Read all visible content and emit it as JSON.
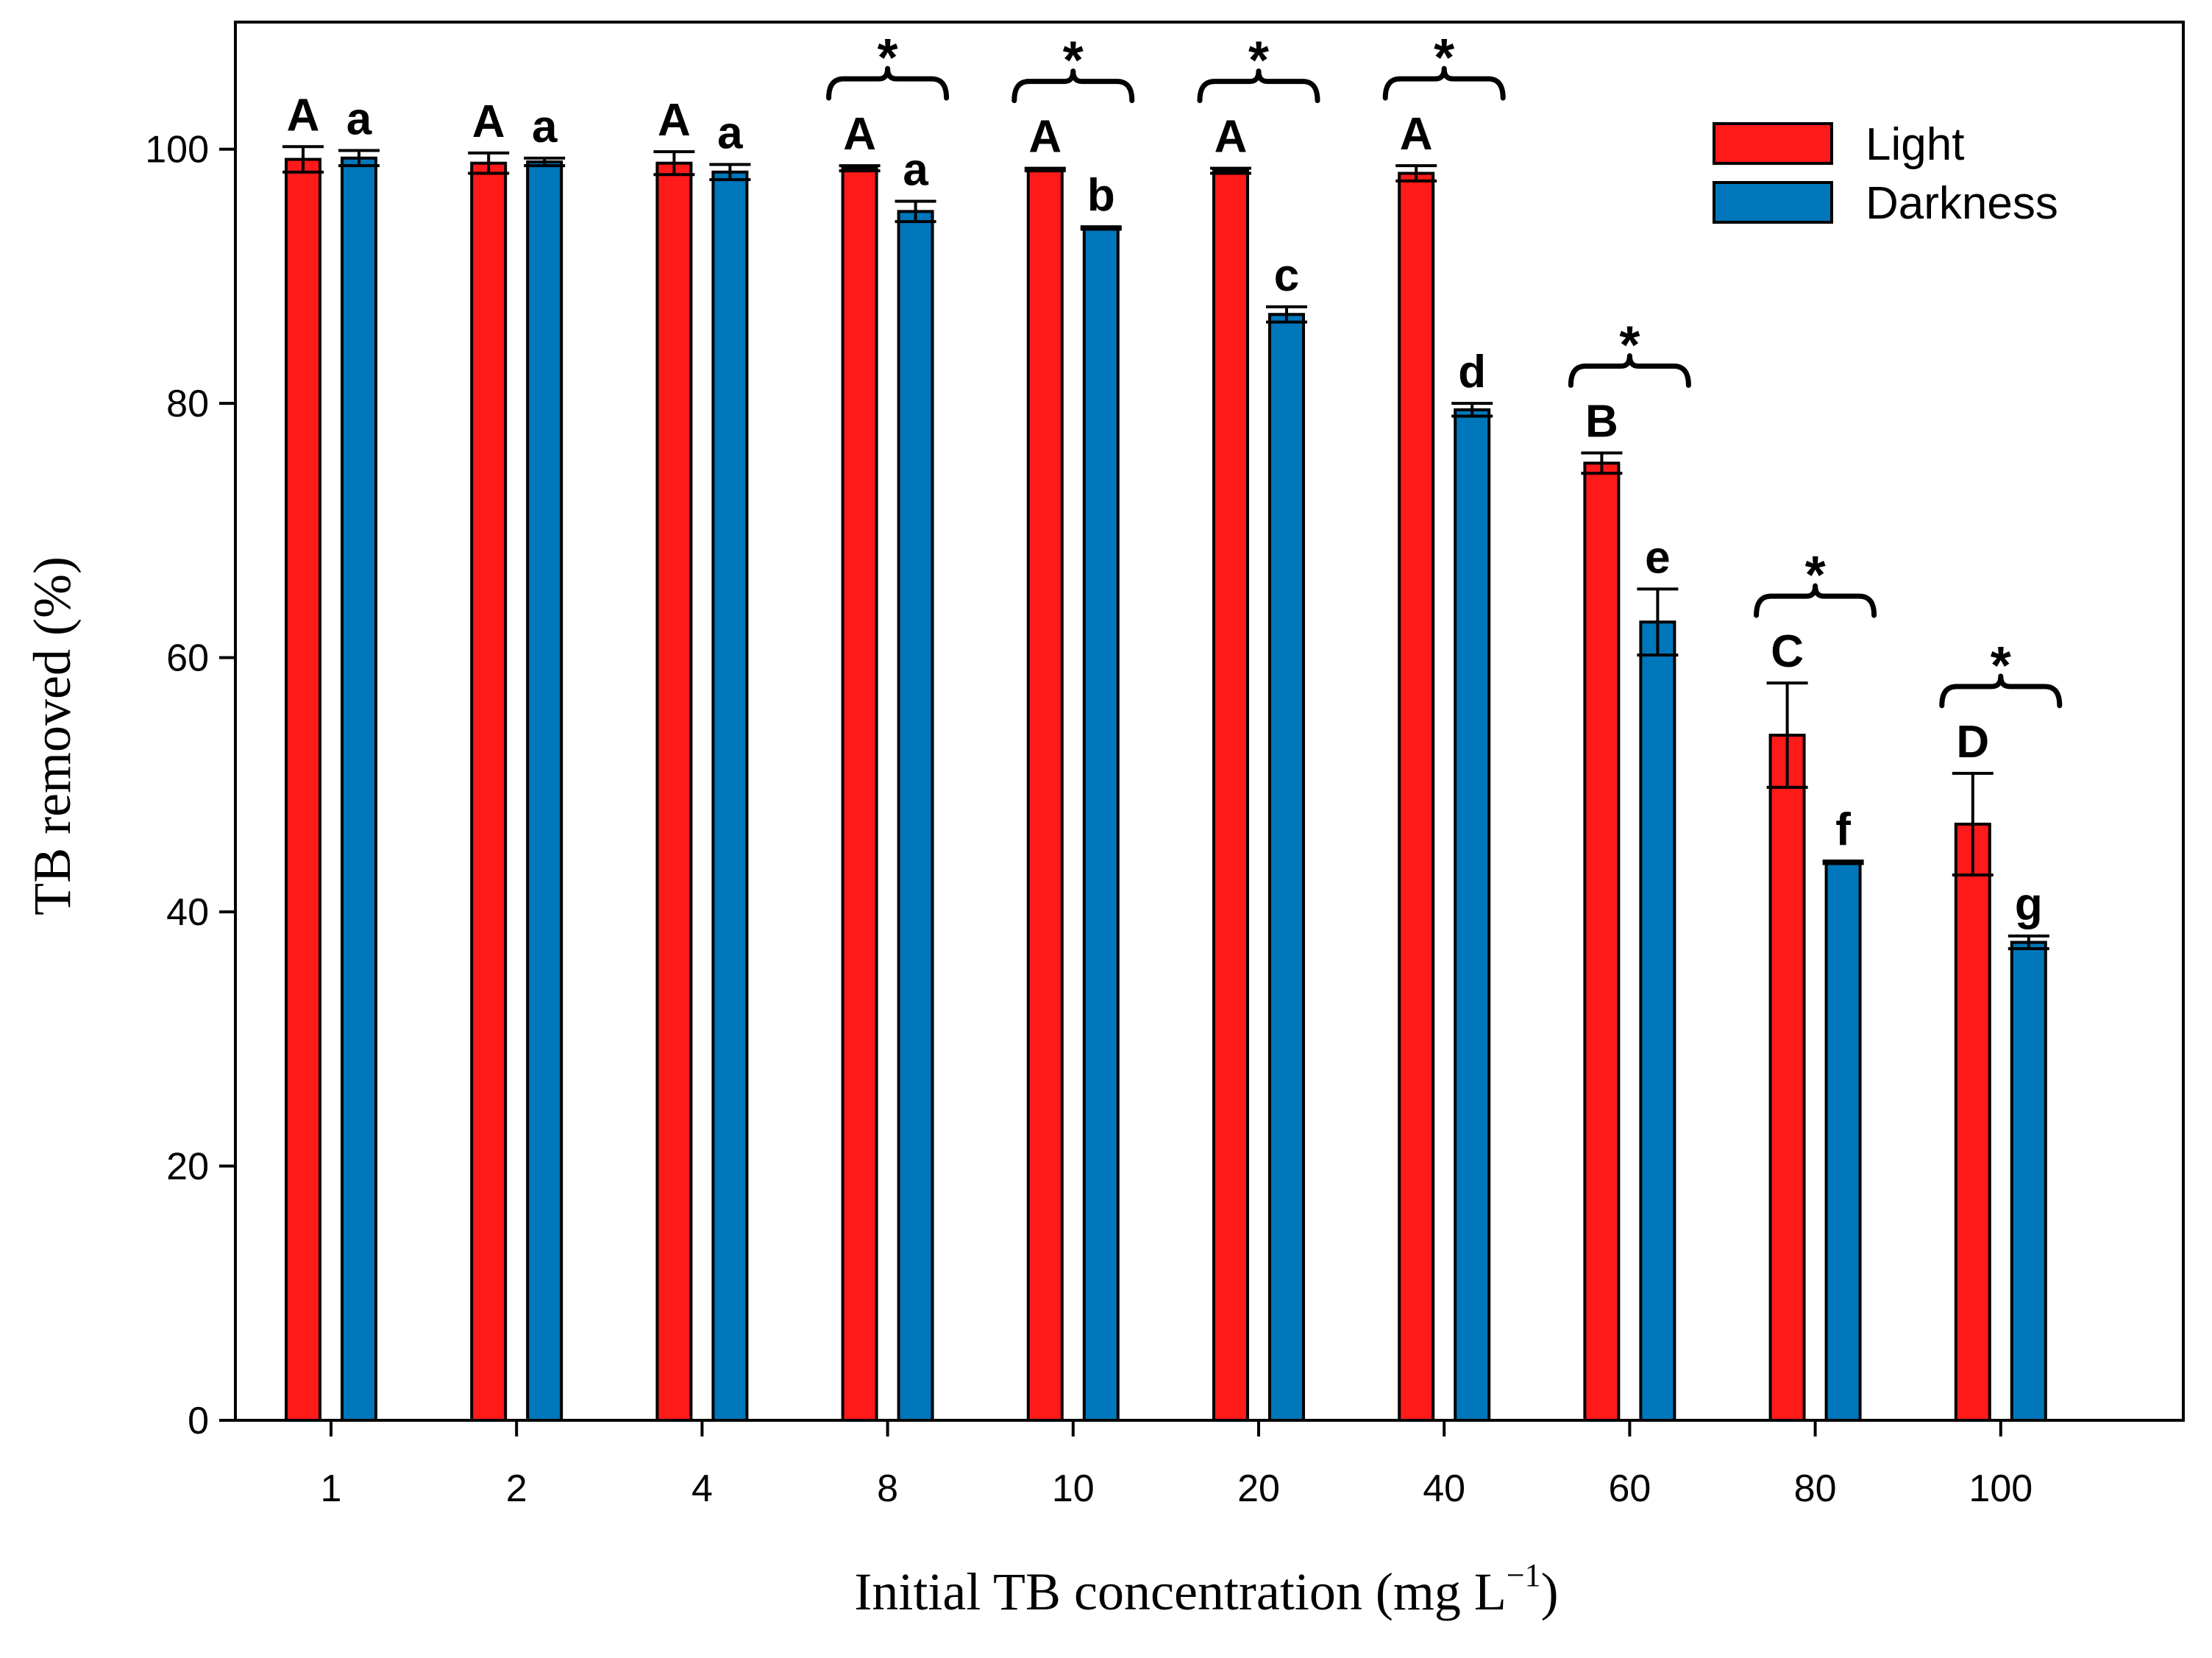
{
  "chart_data": {
    "type": "bar",
    "title": "",
    "xlabel": "Initial TB concentration (mg L",
    "xlabel_unit_exponent": "−1",
    "xlabel_suffix": ")",
    "ylabel": "TB removed (%)",
    "ylim": [
      0,
      110
    ],
    "yticks": [
      0,
      20,
      40,
      60,
      80,
      100
    ],
    "categories": [
      "1",
      "2",
      "4",
      "8",
      "10",
      "20",
      "40",
      "60",
      "80",
      "100"
    ],
    "series": [
      {
        "name": "Light",
        "color": "#ff1a1a",
        "values": [
          99.2,
          98.9,
          98.9,
          98.5,
          98.4,
          98.3,
          98.1,
          75.3,
          53.9,
          46.9
        ],
        "errors": [
          1.0,
          0.8,
          0.9,
          0.2,
          0.1,
          0.2,
          0.6,
          0.8,
          4.1,
          4.0
        ],
        "letters": [
          "A",
          "A",
          "A",
          "A",
          "A",
          "A",
          "A",
          "B",
          "C",
          "D"
        ]
      },
      {
        "name": "Darkness",
        "color": "#0077bb",
        "values": [
          99.3,
          99.0,
          98.2,
          95.1,
          93.8,
          87.0,
          79.5,
          62.8,
          43.9,
          37.6
        ],
        "errors": [
          0.6,
          0.3,
          0.6,
          0.8,
          0.1,
          0.6,
          0.5,
          2.6,
          0.1,
          0.5
        ],
        "letters": [
          "a",
          "a",
          "a",
          "a",
          "b",
          "c",
          "d",
          "e",
          "f",
          "g"
        ]
      }
    ],
    "significance": [
      false,
      false,
      false,
      true,
      true,
      true,
      true,
      true,
      true,
      true
    ],
    "significance_marker": "*",
    "legend": {
      "placement": "top-right",
      "entries": [
        "Light",
        "Darkness"
      ]
    }
  }
}
